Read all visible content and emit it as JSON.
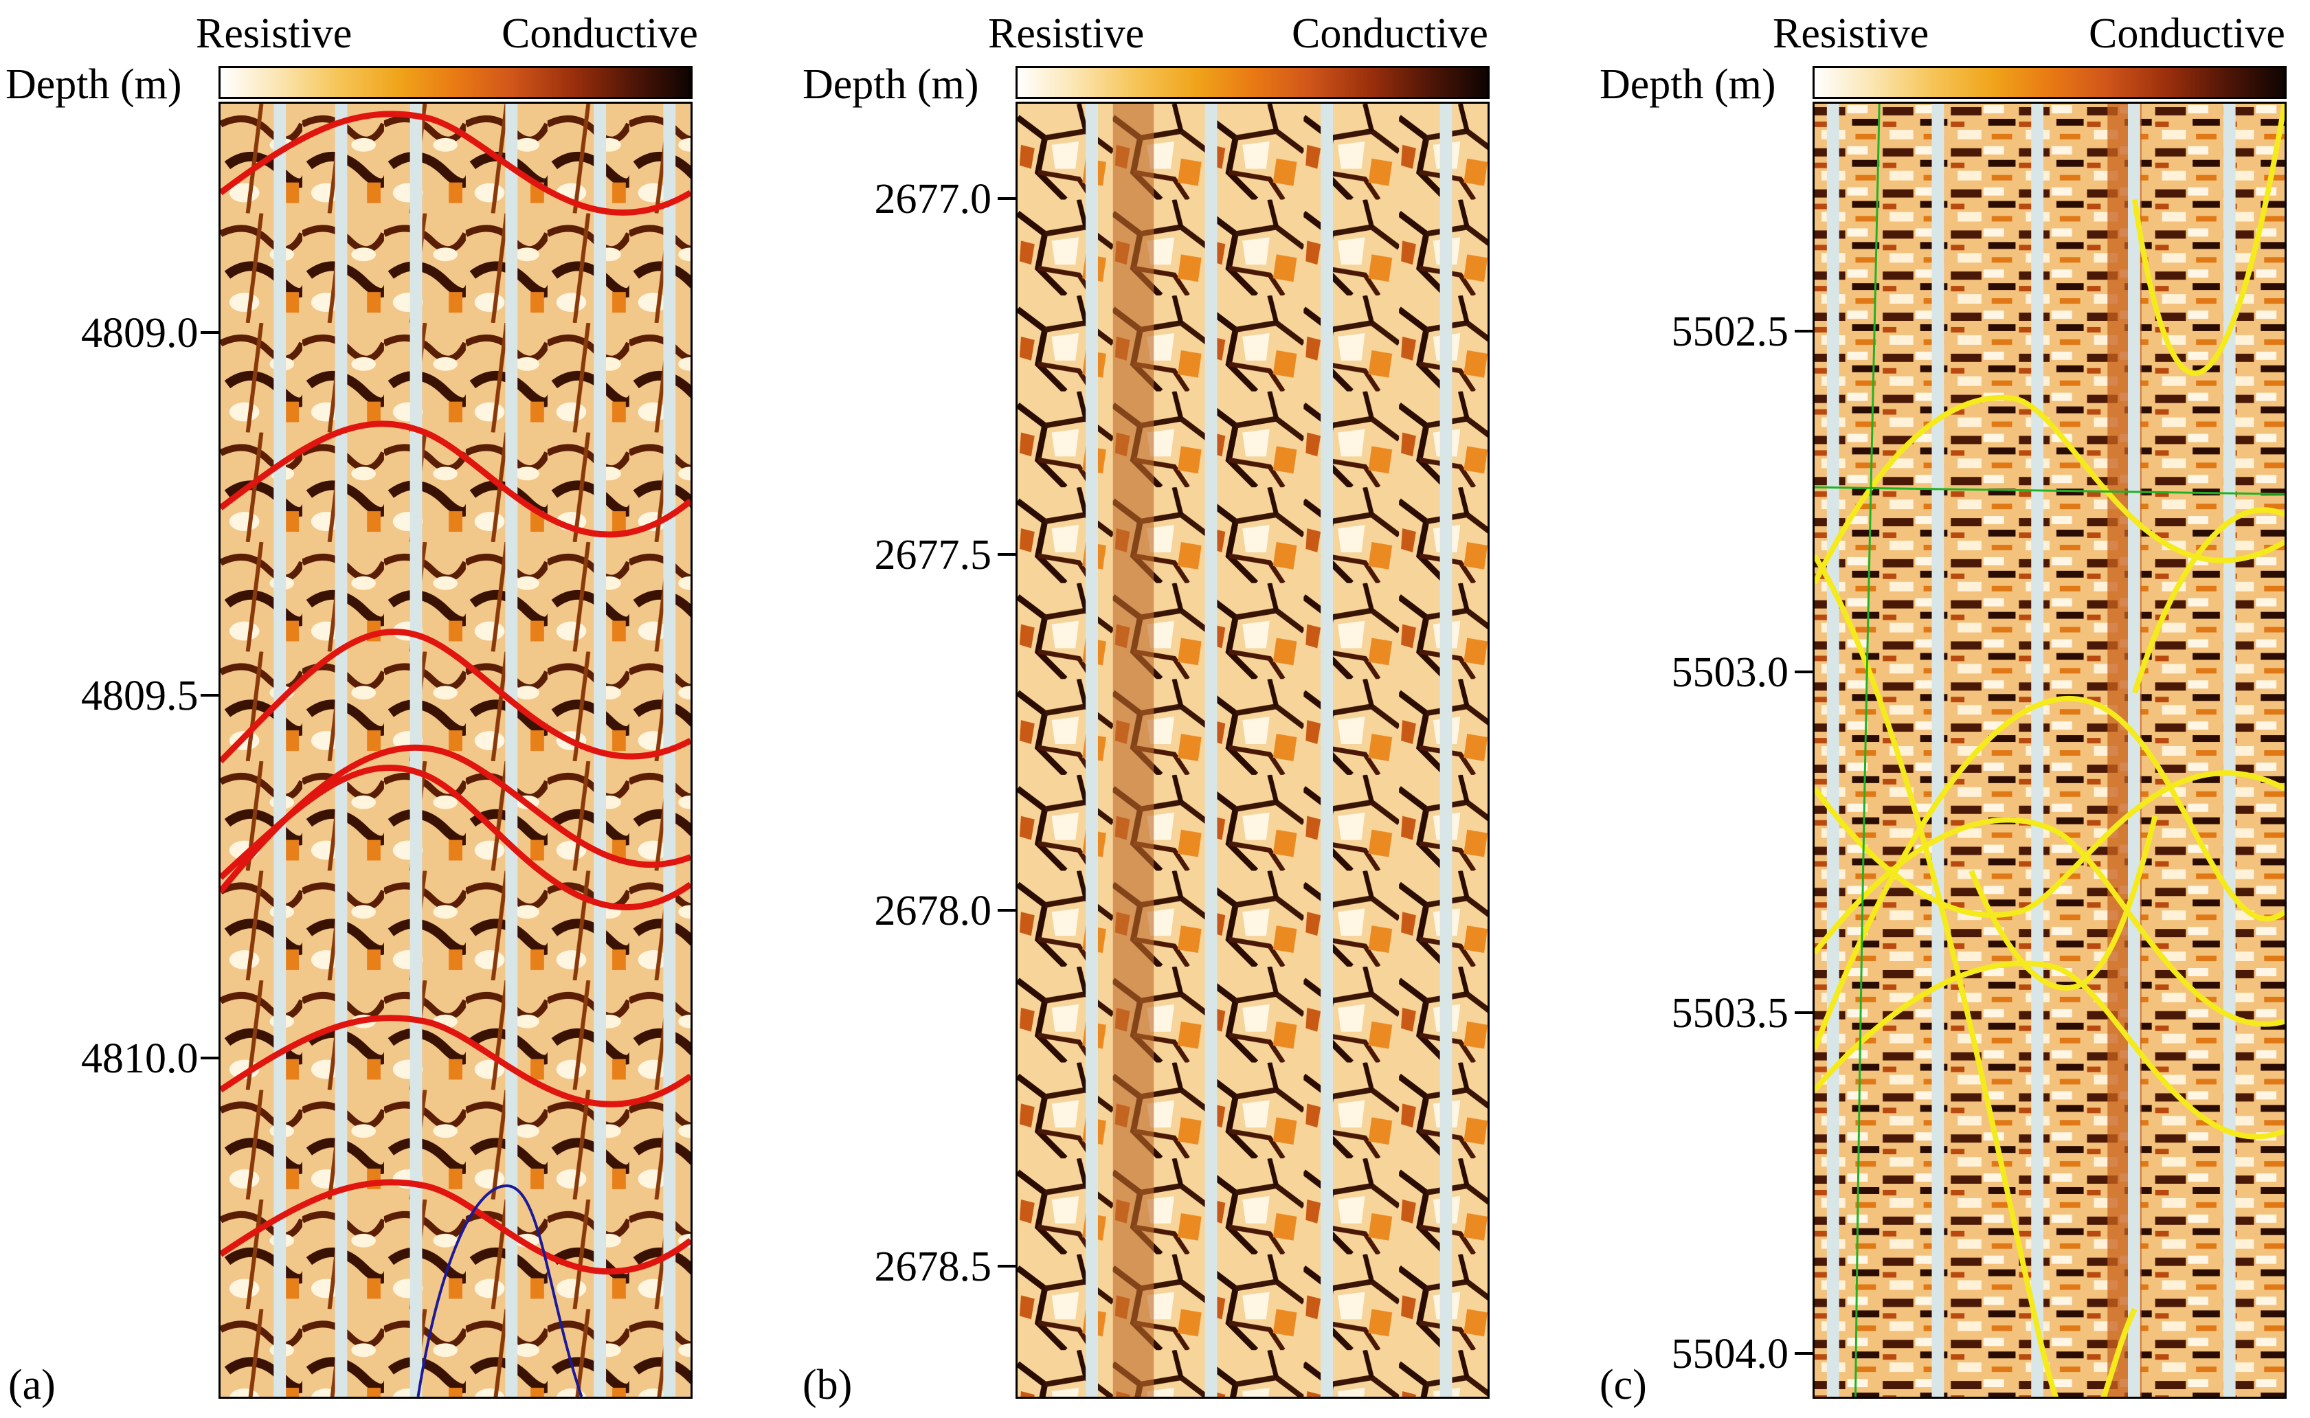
{
  "colorbar": {
    "left_label": "Resistive",
    "right_label": "Conductive",
    "colors": [
      "#ffffff",
      "#fbe6b4",
      "#f6c558",
      "#f0a41a",
      "#e97a14",
      "#d0561a",
      "#9b2f0c",
      "#4e1507",
      "#0e0402"
    ]
  },
  "depth_label": "Depth (m)",
  "panels": [
    {
      "letter": "(a)",
      "ticks": [
        "4809.0",
        "4809.5",
        "4810.0"
      ],
      "sinusoid_color": "#e0150f",
      "secondary_sinusoid_color": "#1a1a9a"
    },
    {
      "letter": "(b)",
      "ticks": [
        "2677.0",
        "2677.5",
        "2678.0",
        "2678.5"
      ]
    },
    {
      "letter": "(c)",
      "ticks": [
        "5502.5",
        "5503.0",
        "5503.5",
        "5504.0"
      ],
      "sinusoid_color": "#f4ea1c",
      "line_color": "#1fb324"
    }
  ]
}
